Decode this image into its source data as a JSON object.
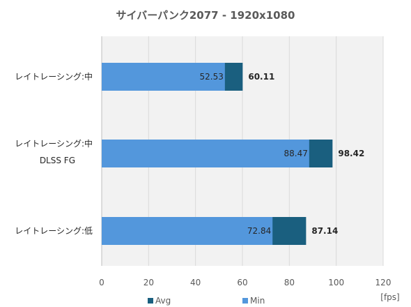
{
  "chart_data": {
    "type": "bar",
    "orientation": "horizontal",
    "title": "サイバーパンク2077 - 1920x1080",
    "categories": [
      [
        "レイトレーシング:中"
      ],
      [
        "レイトレーシング:中",
        "DLSS FG"
      ],
      [
        "レイトレーシング:低"
      ]
    ],
    "series": [
      {
        "name": "Avg",
        "values": [
          60.11,
          98.42,
          87.14
        ],
        "color": "#1a5f7f"
      },
      {
        "name": "Min",
        "values": [
          52.53,
          88.47,
          72.84
        ],
        "color": "#5397dc"
      }
    ],
    "value_labels": {
      "min": [
        "52.53",
        "88.47",
        "72.84"
      ],
      "avg": [
        "60.11",
        "98.42",
        "87.14"
      ]
    },
    "xlim": [
      0,
      120
    ],
    "xticks": [
      "0",
      "20",
      "40",
      "60",
      "80",
      "100",
      "120"
    ],
    "xunit": "[fps]",
    "grid": true,
    "legend_position": "bottom"
  }
}
